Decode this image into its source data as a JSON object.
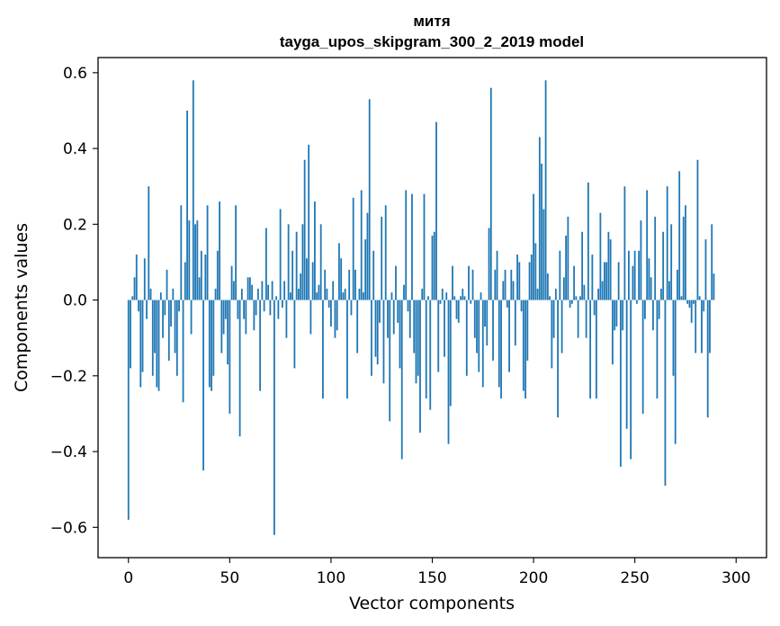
{
  "chart_data": {
    "type": "bar",
    "title": "митя",
    "subtitle": "tayga_upos_skipgram_300_2_2019 model",
    "xlabel": "Vector components",
    "ylabel": "Components values",
    "xlim": [
      -15,
      315
    ],
    "ylim": [
      -0.68,
      0.64
    ],
    "xticks": [
      0,
      50,
      100,
      150,
      200,
      250,
      300
    ],
    "yticks": [
      -0.6,
      -0.4,
      -0.2,
      0.0,
      0.2,
      0.4,
      0.6
    ],
    "ytick_labels": [
      "−0.6",
      "−0.4",
      "−0.2",
      "0.0",
      "0.2",
      "0.4",
      "0.6"
    ],
    "xtick_labels": [
      "0",
      "50",
      "100",
      "150",
      "200",
      "250",
      "300"
    ],
    "bar_color": "#1f77b4",
    "grid": false,
    "values": [
      -0.58,
      -0.18,
      0.01,
      0.06,
      0.12,
      -0.03,
      -0.23,
      -0.19,
      0.11,
      -0.05,
      0.3,
      0.03,
      -0.2,
      -0.14,
      -0.23,
      -0.24,
      0.02,
      -0.1,
      -0.04,
      0.08,
      -0.16,
      -0.07,
      0.03,
      -0.14,
      -0.2,
      -0.03,
      0.25,
      -0.27,
      0.1,
      0.5,
      0.21,
      -0.09,
      0.58,
      0.2,
      0.21,
      0.06,
      0.13,
      -0.45,
      0.12,
      0.25,
      -0.23,
      -0.24,
      -0.2,
      0.03,
      0.13,
      0.26,
      -0.14,
      -0.09,
      -0.05,
      -0.17,
      -0.3,
      0.09,
      0.05,
      0.25,
      -0.05,
      -0.36,
      0.03,
      -0.05,
      -0.09,
      0.06,
      0.06,
      0.04,
      -0.08,
      -0.04,
      0.03,
      -0.24,
      0.05,
      -0.03,
      0.19,
      0.04,
      -0.04,
      0.05,
      -0.62,
      0.01,
      -0.05,
      0.24,
      -0.02,
      0.05,
      -0.1,
      0.2,
      0.02,
      0.13,
      -0.18,
      0.18,
      0.03,
      0.07,
      0.2,
      0.37,
      0.11,
      0.41,
      -0.09,
      0.1,
      0.26,
      0.02,
      0.04,
      0.2,
      -0.26,
      0.08,
      0.03,
      -0.02,
      -0.07,
      0.05,
      -0.1,
      -0.08,
      0.15,
      0.11,
      0.02,
      0.03,
      -0.26,
      0.08,
      -0.04,
      0.27,
      0.08,
      -0.14,
      0.03,
      0.29,
      0.02,
      0.16,
      0.23,
      0.53,
      -0.2,
      0.13,
      -0.15,
      -0.17,
      -0.06,
      0.22,
      -0.22,
      0.25,
      -0.1,
      -0.32,
      0.02,
      -0.09,
      0.09,
      -0.06,
      -0.18,
      -0.42,
      0.04,
      0.29,
      -0.03,
      -0.1,
      0.28,
      -0.14,
      -0.22,
      -0.2,
      -0.35,
      0.03,
      0.28,
      -0.26,
      0.01,
      -0.29,
      0.17,
      0.18,
      0.47,
      -0.19,
      -0.01,
      0.03,
      -0.15,
      0.02,
      -0.38,
      -0.28,
      0.09,
      0.01,
      -0.05,
      -0.06,
      0.01,
      0.03,
      0.01,
      -0.2,
      0.09,
      -0.01,
      0.08,
      -0.1,
      -0.14,
      -0.19,
      0.02,
      -0.23,
      -0.07,
      -0.12,
      0.19,
      0.56,
      -0.16,
      0.08,
      0.13,
      -0.23,
      -0.26,
      0.05,
      0.08,
      -0.02,
      -0.19,
      0.08,
      0.05,
      -0.12,
      0.12,
      0.1,
      -0.03,
      -0.24,
      -0.26,
      -0.16,
      0.1,
      0.12,
      0.28,
      0.15,
      0.03,
      0.43,
      0.36,
      0.24,
      0.58,
      0.07,
      0.01,
      -0.18,
      -0.1,
      0.03,
      -0.31,
      0.13,
      -0.14,
      0.06,
      0.17,
      0.22,
      -0.02,
      -0.01,
      0.09,
      0.01,
      -0.1,
      0.01,
      0.18,
      0.04,
      -0.1,
      0.31,
      -0.26,
      0.12,
      -0.04,
      -0.26,
      0.03,
      0.23,
      0.05,
      0.1,
      0.1,
      0.18,
      0.16,
      -0.17,
      -0.08,
      -0.07,
      0.1,
      -0.44,
      -0.08,
      0.3,
      -0.34,
      0.13,
      -0.42,
      0.09,
      0.13,
      -0.01,
      0.13,
      0.21,
      -0.3,
      -0.05,
      0.29,
      0.11,
      0.06,
      -0.08,
      0.22,
      -0.26,
      -0.05,
      0.03,
      0.18,
      -0.49,
      0.3,
      0.05,
      0.2,
      -0.2,
      -0.38,
      0.08,
      0.34,
      0.01,
      0.22,
      0.25,
      -0.01,
      -0.02,
      -0.06,
      -0.01,
      -0.14,
      0.37,
      0.01,
      -0.14,
      -0.03,
      0.16,
      -0.31,
      -0.14,
      0.2,
      0.07
    ]
  }
}
